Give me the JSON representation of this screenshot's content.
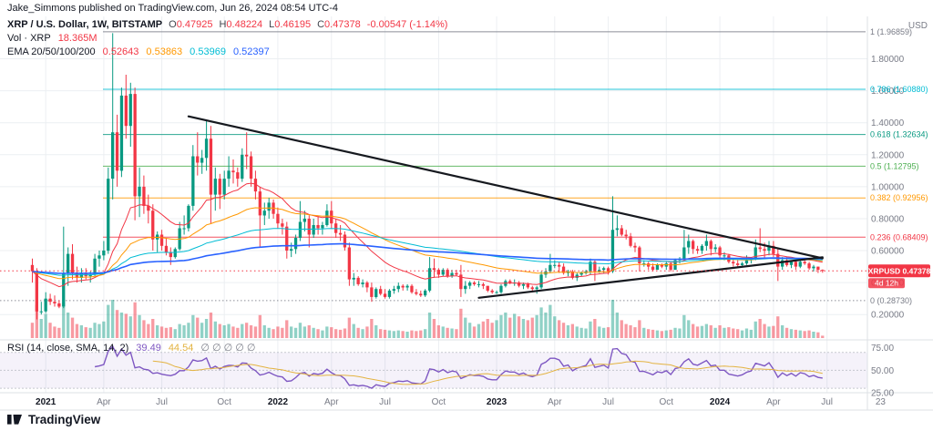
{
  "publish_line": "Jake_Simmons published on TradingView.com, Jun 26, 2024 08:54 UTC-4",
  "header": {
    "symbol_title": "XRP / U.S. Dollar, 1W, BITSTAMP",
    "ohlc": {
      "o_label": "O",
      "o": "0.47925",
      "h_label": "H",
      "h": "0.48224",
      "l_label": "L",
      "l": "0.46195",
      "c_label": "C",
      "c": "0.47378",
      "change": "-0.00547 (-1.14%)"
    },
    "volume_label": "Vol · XRP",
    "volume_value": "18.365M",
    "ema_label": "EMA 20/50/100/200",
    "ema_values": [
      "0.52643",
      "0.53863",
      "0.53969",
      "0.52397"
    ]
  },
  "price_scale": {
    "currency": "USD",
    "last_price_badge": {
      "symbol": "XRPUSD",
      "price": "0.47378",
      "countdown": "4d 12h"
    }
  },
  "rsi_legend": {
    "title": "RSI (14, close, SMA, 14, 2)",
    "rsi_value": "39.49",
    "sma_value": "44.54",
    "empty_values": "∅ ∅ ∅ ∅ ∅"
  },
  "footer": {
    "logo_text": "TradingView"
  },
  "chart_data": {
    "type": "candlestick",
    "title": "XRP / U.S. Dollar, 1W, BITSTAMP",
    "symbol": "XRPUSD",
    "timeframe": "1W",
    "exchange": "BITSTAMP",
    "last_price": 0.47378,
    "candle_up_color": "#089981",
    "candle_down_color": "#F23645",
    "volume_color_up": "rgba(8,153,129,0.45)",
    "volume_color_down": "rgba(242,54,69,0.5)",
    "y_ticks": [
      {
        "label": "1.80000",
        "value": 1.8
      },
      {
        "label": "1.60000",
        "value": 1.6
      },
      {
        "label": "1.40000",
        "value": 1.4
      },
      {
        "label": "1.20000",
        "value": 1.2
      },
      {
        "label": "1.00000",
        "value": 1.0
      },
      {
        "label": "0.80000",
        "value": 0.8
      },
      {
        "label": "0.60000",
        "value": 0.6
      },
      {
        "label": "0.40000",
        "value": 0.4
      },
      {
        "label": "0.20000",
        "value": 0.2
      }
    ],
    "x_ticks": [
      {
        "label": "2021",
        "idx": 3,
        "major": true
      },
      {
        "label": "Apr",
        "idx": 16
      },
      {
        "label": "Jul",
        "idx": 29
      },
      {
        "label": "Oct",
        "idx": 43
      },
      {
        "label": "2022",
        "idx": 55,
        "major": true
      },
      {
        "label": "Apr",
        "idx": 67
      },
      {
        "label": "Jul",
        "idx": 79
      },
      {
        "label": "Oct",
        "idx": 91
      },
      {
        "label": "2023",
        "idx": 104,
        "major": true
      },
      {
        "label": "Apr",
        "idx": 117
      },
      {
        "label": "Jul",
        "idx": 129
      },
      {
        "label": "Oct",
        "idx": 142
      },
      {
        "label": "2024",
        "idx": 154,
        "major": true
      },
      {
        "label": "Apr",
        "idx": 166
      },
      {
        "label": "Jul",
        "idx": 178
      },
      {
        "label": "23",
        "idx": 190
      }
    ],
    "fib_levels": [
      {
        "level": "1",
        "label": "1 (1.96859)",
        "value": 1.96859,
        "color": "#787B86"
      },
      {
        "level": "0.786",
        "label": "0.786 (1.60880)",
        "value": 1.6088,
        "color": "#00BCD4"
      },
      {
        "level": "0.618",
        "label": "0.618 (1.32634)",
        "value": 1.32634,
        "color": "#089981"
      },
      {
        "level": "0.5",
        "label": "0.5 (1.12795)",
        "value": 1.12795,
        "color": "#4CAF50"
      },
      {
        "level": "0.382",
        "label": "0.382 (0.92956)",
        "value": 0.92956,
        "color": "#FF9800"
      },
      {
        "level": "0.236",
        "label": "0.236 (0.68409)",
        "value": 0.68409,
        "color": "#F23645"
      },
      {
        "level": "0",
        "label": "0 (0.28730)",
        "value": 0.2873,
        "color": "#787B86",
        "style": "dotted"
      }
    ],
    "trendlines": [
      {
        "i1": 35,
        "p1": 1.44,
        "i2": 177,
        "p2": 0.552
      },
      {
        "i1": 100,
        "p1": 0.305,
        "i2": 177,
        "p2": 0.558
      }
    ],
    "emas": [
      20,
      50,
      100,
      200
    ],
    "ema_colors": [
      "#F23645",
      "#FF9800",
      "#00BCD4",
      "#2962FF"
    ],
    "rsi": {
      "length": 14,
      "source": "close",
      "smoothing": "SMA",
      "smoothing_length": 14,
      "line_color": "#7E57C2",
      "sma_color": "#E3B341",
      "ticks": [
        {
          "label": "75.00",
          "value": 75
        },
        {
          "label": "50.00",
          "value": 50
        },
        {
          "label": "25.00",
          "value": 25
        }
      ]
    },
    "candles": [
      [
        0.51,
        0.55,
        0.4,
        0.47,
        120
      ],
      [
        0.47,
        0.49,
        0.17,
        0.22,
        260
      ],
      [
        0.22,
        0.28,
        0.2,
        0.22,
        150
      ],
      [
        0.22,
        0.34,
        0.21,
        0.3,
        190
      ],
      [
        0.3,
        0.33,
        0.26,
        0.28,
        120
      ],
      [
        0.28,
        0.32,
        0.25,
        0.27,
        90
      ],
      [
        0.27,
        0.29,
        0.24,
        0.25,
        80
      ],
      [
        0.25,
        0.75,
        0.24,
        0.46,
        280
      ],
      [
        0.46,
        0.62,
        0.38,
        0.58,
        200
      ],
      [
        0.58,
        0.64,
        0.42,
        0.46,
        160
      ],
      [
        0.46,
        0.5,
        0.4,
        0.43,
        110
      ],
      [
        0.43,
        0.49,
        0.4,
        0.46,
        100
      ],
      [
        0.46,
        0.49,
        0.42,
        0.44,
        85
      ],
      [
        0.44,
        0.47,
        0.4,
        0.45,
        80
      ],
      [
        0.45,
        0.58,
        0.44,
        0.55,
        120
      ],
      [
        0.55,
        0.6,
        0.5,
        0.57,
        110
      ],
      [
        0.57,
        0.66,
        0.54,
        0.6,
        130
      ],
      [
        0.6,
        1.12,
        0.58,
        1.05,
        260
      ],
      [
        1.05,
        1.96,
        0.92,
        1.34,
        300
      ],
      [
        1.34,
        1.45,
        1.0,
        1.1,
        220
      ],
      [
        1.1,
        1.62,
        1.06,
        1.57,
        200
      ],
      [
        1.57,
        1.7,
        1.3,
        1.38,
        190
      ],
      [
        1.38,
        1.65,
        1.25,
        1.58,
        170
      ],
      [
        1.58,
        1.62,
        0.79,
        0.94,
        280
      ],
      [
        0.94,
        1.12,
        0.81,
        1.0,
        180
      ],
      [
        1.0,
        1.07,
        0.83,
        0.88,
        140
      ],
      [
        0.88,
        0.95,
        0.77,
        0.85,
        110
      ],
      [
        0.85,
        0.89,
        0.6,
        0.67,
        150
      ],
      [
        0.67,
        0.72,
        0.59,
        0.7,
        100
      ],
      [
        0.7,
        0.73,
        0.6,
        0.63,
        90
      ],
      [
        0.63,
        0.68,
        0.57,
        0.59,
        80
      ],
      [
        0.59,
        0.62,
        0.51,
        0.56,
        85
      ],
      [
        0.56,
        0.62,
        0.55,
        0.61,
        70
      ],
      [
        0.61,
        0.78,
        0.6,
        0.74,
        110
      ],
      [
        0.74,
        0.82,
        0.7,
        0.74,
        100
      ],
      [
        0.74,
        0.89,
        0.72,
        0.88,
        120
      ],
      [
        0.88,
        1.26,
        0.85,
        1.19,
        180
      ],
      [
        1.19,
        1.34,
        1.07,
        1.15,
        160
      ],
      [
        1.15,
        1.23,
        1.08,
        1.18,
        120
      ],
      [
        1.18,
        1.41,
        1.1,
        1.3,
        150
      ],
      [
        1.3,
        1.38,
        0.77,
        0.95,
        200
      ],
      [
        0.95,
        1.12,
        0.85,
        1.05,
        130
      ],
      [
        1.05,
        1.08,
        0.86,
        0.95,
        110
      ],
      [
        0.95,
        1.1,
        0.92,
        1.05,
        100
      ],
      [
        1.05,
        1.19,
        1.0,
        1.1,
        110
      ],
      [
        1.1,
        1.17,
        1.02,
        1.09,
        90
      ],
      [
        1.09,
        1.12,
        1.0,
        1.05,
        80
      ],
      [
        1.05,
        1.24,
        1.03,
        1.2,
        110
      ],
      [
        1.2,
        1.34,
        1.11,
        1.19,
        120
      ],
      [
        1.19,
        1.22,
        1.0,
        1.05,
        100
      ],
      [
        1.05,
        1.1,
        0.92,
        0.97,
        90
      ],
      [
        0.97,
        1.0,
        0.62,
        0.82,
        180
      ],
      [
        0.82,
        0.9,
        0.76,
        0.85,
        100
      ],
      [
        0.85,
        0.93,
        0.8,
        0.9,
        80
      ],
      [
        0.9,
        0.92,
        0.8,
        0.83,
        70
      ],
      [
        0.83,
        0.87,
        0.74,
        0.77,
        90
      ],
      [
        0.77,
        0.8,
        0.7,
        0.75,
        80
      ],
      [
        0.75,
        0.78,
        0.55,
        0.6,
        140
      ],
      [
        0.6,
        0.65,
        0.56,
        0.61,
        90
      ],
      [
        0.61,
        0.7,
        0.58,
        0.68,
        80
      ],
      [
        0.68,
        0.91,
        0.66,
        0.78,
        120
      ],
      [
        0.78,
        0.85,
        0.72,
        0.8,
        90
      ],
      [
        0.8,
        0.82,
        0.62,
        0.7,
        100
      ],
      [
        0.7,
        0.8,
        0.68,
        0.76,
        80
      ],
      [
        0.76,
        0.82,
        0.7,
        0.74,
        70
      ],
      [
        0.74,
        0.78,
        0.7,
        0.76,
        60
      ],
      [
        0.76,
        0.89,
        0.75,
        0.85,
        90
      ],
      [
        0.85,
        0.91,
        0.74,
        0.77,
        85
      ],
      [
        0.77,
        0.8,
        0.68,
        0.71,
        70
      ],
      [
        0.71,
        0.76,
        0.66,
        0.7,
        65
      ],
      [
        0.7,
        0.72,
        0.6,
        0.62,
        75
      ],
      [
        0.62,
        0.65,
        0.38,
        0.42,
        160
      ],
      [
        0.42,
        0.46,
        0.38,
        0.43,
        110
      ],
      [
        0.43,
        0.44,
        0.38,
        0.39,
        80
      ],
      [
        0.39,
        0.42,
        0.37,
        0.4,
        70
      ],
      [
        0.4,
        0.41,
        0.34,
        0.37,
        90
      ],
      [
        0.37,
        0.4,
        0.28,
        0.31,
        150
      ],
      [
        0.31,
        0.37,
        0.3,
        0.36,
        100
      ],
      [
        0.36,
        0.38,
        0.32,
        0.33,
        70
      ],
      [
        0.33,
        0.36,
        0.3,
        0.31,
        65
      ],
      [
        0.31,
        0.36,
        0.3,
        0.35,
        60
      ],
      [
        0.35,
        0.38,
        0.33,
        0.36,
        55
      ],
      [
        0.36,
        0.4,
        0.34,
        0.38,
        60
      ],
      [
        0.38,
        0.39,
        0.35,
        0.37,
        55
      ],
      [
        0.37,
        0.39,
        0.35,
        0.38,
        50
      ],
      [
        0.38,
        0.39,
        0.33,
        0.34,
        60
      ],
      [
        0.34,
        0.36,
        0.32,
        0.33,
        55
      ],
      [
        0.33,
        0.35,
        0.31,
        0.32,
        60
      ],
      [
        0.32,
        0.36,
        0.31,
        0.35,
        70
      ],
      [
        0.35,
        0.56,
        0.34,
        0.49,
        200
      ],
      [
        0.49,
        0.55,
        0.43,
        0.48,
        150
      ],
      [
        0.48,
        0.49,
        0.43,
        0.45,
        100
      ],
      [
        0.45,
        0.49,
        0.44,
        0.48,
        90
      ],
      [
        0.48,
        0.49,
        0.43,
        0.44,
        80
      ],
      [
        0.44,
        0.48,
        0.43,
        0.46,
        75
      ],
      [
        0.46,
        0.48,
        0.44,
        0.45,
        70
      ],
      [
        0.45,
        0.51,
        0.31,
        0.36,
        230
      ],
      [
        0.36,
        0.41,
        0.33,
        0.38,
        160
      ],
      [
        0.38,
        0.41,
        0.36,
        0.4,
        120
      ],
      [
        0.4,
        0.41,
        0.38,
        0.39,
        90
      ],
      [
        0.39,
        0.41,
        0.37,
        0.39,
        110
      ],
      [
        0.39,
        0.4,
        0.36,
        0.38,
        130
      ],
      [
        0.38,
        0.38,
        0.34,
        0.35,
        150
      ],
      [
        0.35,
        0.36,
        0.33,
        0.34,
        120
      ],
      [
        0.34,
        0.35,
        0.33,
        0.34,
        140
      ],
      [
        0.34,
        0.39,
        0.33,
        0.38,
        180
      ],
      [
        0.38,
        0.42,
        0.37,
        0.41,
        200
      ],
      [
        0.41,
        0.42,
        0.39,
        0.4,
        160
      ],
      [
        0.4,
        0.42,
        0.38,
        0.4,
        190
      ],
      [
        0.4,
        0.41,
        0.37,
        0.38,
        170
      ],
      [
        0.38,
        0.4,
        0.36,
        0.39,
        150
      ],
      [
        0.39,
        0.4,
        0.36,
        0.37,
        140
      ],
      [
        0.37,
        0.38,
        0.34,
        0.36,
        160
      ],
      [
        0.36,
        0.38,
        0.33,
        0.37,
        180
      ],
      [
        0.37,
        0.47,
        0.36,
        0.45,
        240
      ],
      [
        0.45,
        0.49,
        0.43,
        0.47,
        200
      ],
      [
        0.47,
        0.58,
        0.46,
        0.51,
        260
      ],
      [
        0.51,
        0.54,
        0.49,
        0.51,
        170
      ],
      [
        0.51,
        0.53,
        0.46,
        0.5,
        140
      ],
      [
        0.5,
        0.52,
        0.45,
        0.46,
        120
      ],
      [
        0.46,
        0.48,
        0.44,
        0.47,
        100
      ],
      [
        0.47,
        0.48,
        0.42,
        0.43,
        110
      ],
      [
        0.43,
        0.46,
        0.41,
        0.45,
        90
      ],
      [
        0.45,
        0.47,
        0.44,
        0.46,
        80
      ],
      [
        0.46,
        0.48,
        0.45,
        0.47,
        75
      ],
      [
        0.47,
        0.55,
        0.45,
        0.53,
        130
      ],
      [
        0.53,
        0.54,
        0.41,
        0.47,
        150
      ],
      [
        0.47,
        0.5,
        0.46,
        0.48,
        90
      ],
      [
        0.48,
        0.5,
        0.46,
        0.49,
        80
      ],
      [
        0.49,
        0.5,
        0.45,
        0.47,
        85
      ],
      [
        0.47,
        0.94,
        0.46,
        0.73,
        300
      ],
      [
        0.73,
        0.82,
        0.69,
        0.74,
        200
      ],
      [
        0.74,
        0.76,
        0.69,
        0.7,
        140
      ],
      [
        0.7,
        0.73,
        0.67,
        0.69,
        110
      ],
      [
        0.69,
        0.71,
        0.62,
        0.63,
        100
      ],
      [
        0.63,
        0.65,
        0.59,
        0.62,
        85
      ],
      [
        0.62,
        0.63,
        0.47,
        0.52,
        140
      ],
      [
        0.52,
        0.54,
        0.5,
        0.52,
        80
      ],
      [
        0.52,
        0.53,
        0.48,
        0.5,
        70
      ],
      [
        0.5,
        0.52,
        0.47,
        0.48,
        65
      ],
      [
        0.48,
        0.52,
        0.48,
        0.51,
        60
      ],
      [
        0.51,
        0.52,
        0.49,
        0.5,
        55
      ],
      [
        0.5,
        0.53,
        0.48,
        0.52,
        60
      ],
      [
        0.52,
        0.53,
        0.47,
        0.48,
        65
      ],
      [
        0.48,
        0.55,
        0.48,
        0.54,
        80
      ],
      [
        0.54,
        0.56,
        0.52,
        0.55,
        75
      ],
      [
        0.55,
        0.73,
        0.54,
        0.62,
        180
      ],
      [
        0.62,
        0.7,
        0.58,
        0.66,
        140
      ],
      [
        0.66,
        0.67,
        0.58,
        0.61,
        110
      ],
      [
        0.61,
        0.63,
        0.58,
        0.6,
        90
      ],
      [
        0.6,
        0.64,
        0.58,
        0.63,
        95
      ],
      [
        0.63,
        0.7,
        0.6,
        0.66,
        110
      ],
      [
        0.66,
        0.67,
        0.57,
        0.61,
        100
      ],
      [
        0.61,
        0.64,
        0.59,
        0.62,
        80
      ],
      [
        0.62,
        0.63,
        0.55,
        0.57,
        100
      ],
      [
        0.57,
        0.59,
        0.54,
        0.57,
        80
      ],
      [
        0.57,
        0.58,
        0.52,
        0.53,
        85
      ],
      [
        0.53,
        0.55,
        0.5,
        0.52,
        75
      ],
      [
        0.52,
        0.54,
        0.49,
        0.51,
        70
      ],
      [
        0.51,
        0.53,
        0.5,
        0.52,
        60
      ],
      [
        0.52,
        0.57,
        0.51,
        0.54,
        75
      ],
      [
        0.54,
        0.56,
        0.52,
        0.55,
        65
      ],
      [
        0.55,
        0.67,
        0.54,
        0.62,
        130
      ],
      [
        0.62,
        0.74,
        0.59,
        0.61,
        150
      ],
      [
        0.61,
        0.65,
        0.55,
        0.6,
        110
      ],
      [
        0.6,
        0.66,
        0.57,
        0.63,
        90
      ],
      [
        0.63,
        0.66,
        0.56,
        0.58,
        95
      ],
      [
        0.58,
        0.62,
        0.41,
        0.5,
        170
      ],
      [
        0.5,
        0.56,
        0.48,
        0.54,
        100
      ],
      [
        0.54,
        0.56,
        0.5,
        0.51,
        80
      ],
      [
        0.51,
        0.54,
        0.49,
        0.53,
        70
      ],
      [
        0.53,
        0.54,
        0.48,
        0.5,
        65
      ],
      [
        0.5,
        0.55,
        0.49,
        0.53,
        60
      ],
      [
        0.53,
        0.54,
        0.51,
        0.52,
        55
      ],
      [
        0.52,
        0.53,
        0.48,
        0.49,
        60
      ],
      [
        0.49,
        0.51,
        0.47,
        0.5,
        50
      ],
      [
        0.5,
        0.5,
        0.46,
        0.48,
        45
      ],
      [
        0.47925,
        0.48224,
        0.46195,
        0.47378,
        18.4
      ]
    ]
  }
}
